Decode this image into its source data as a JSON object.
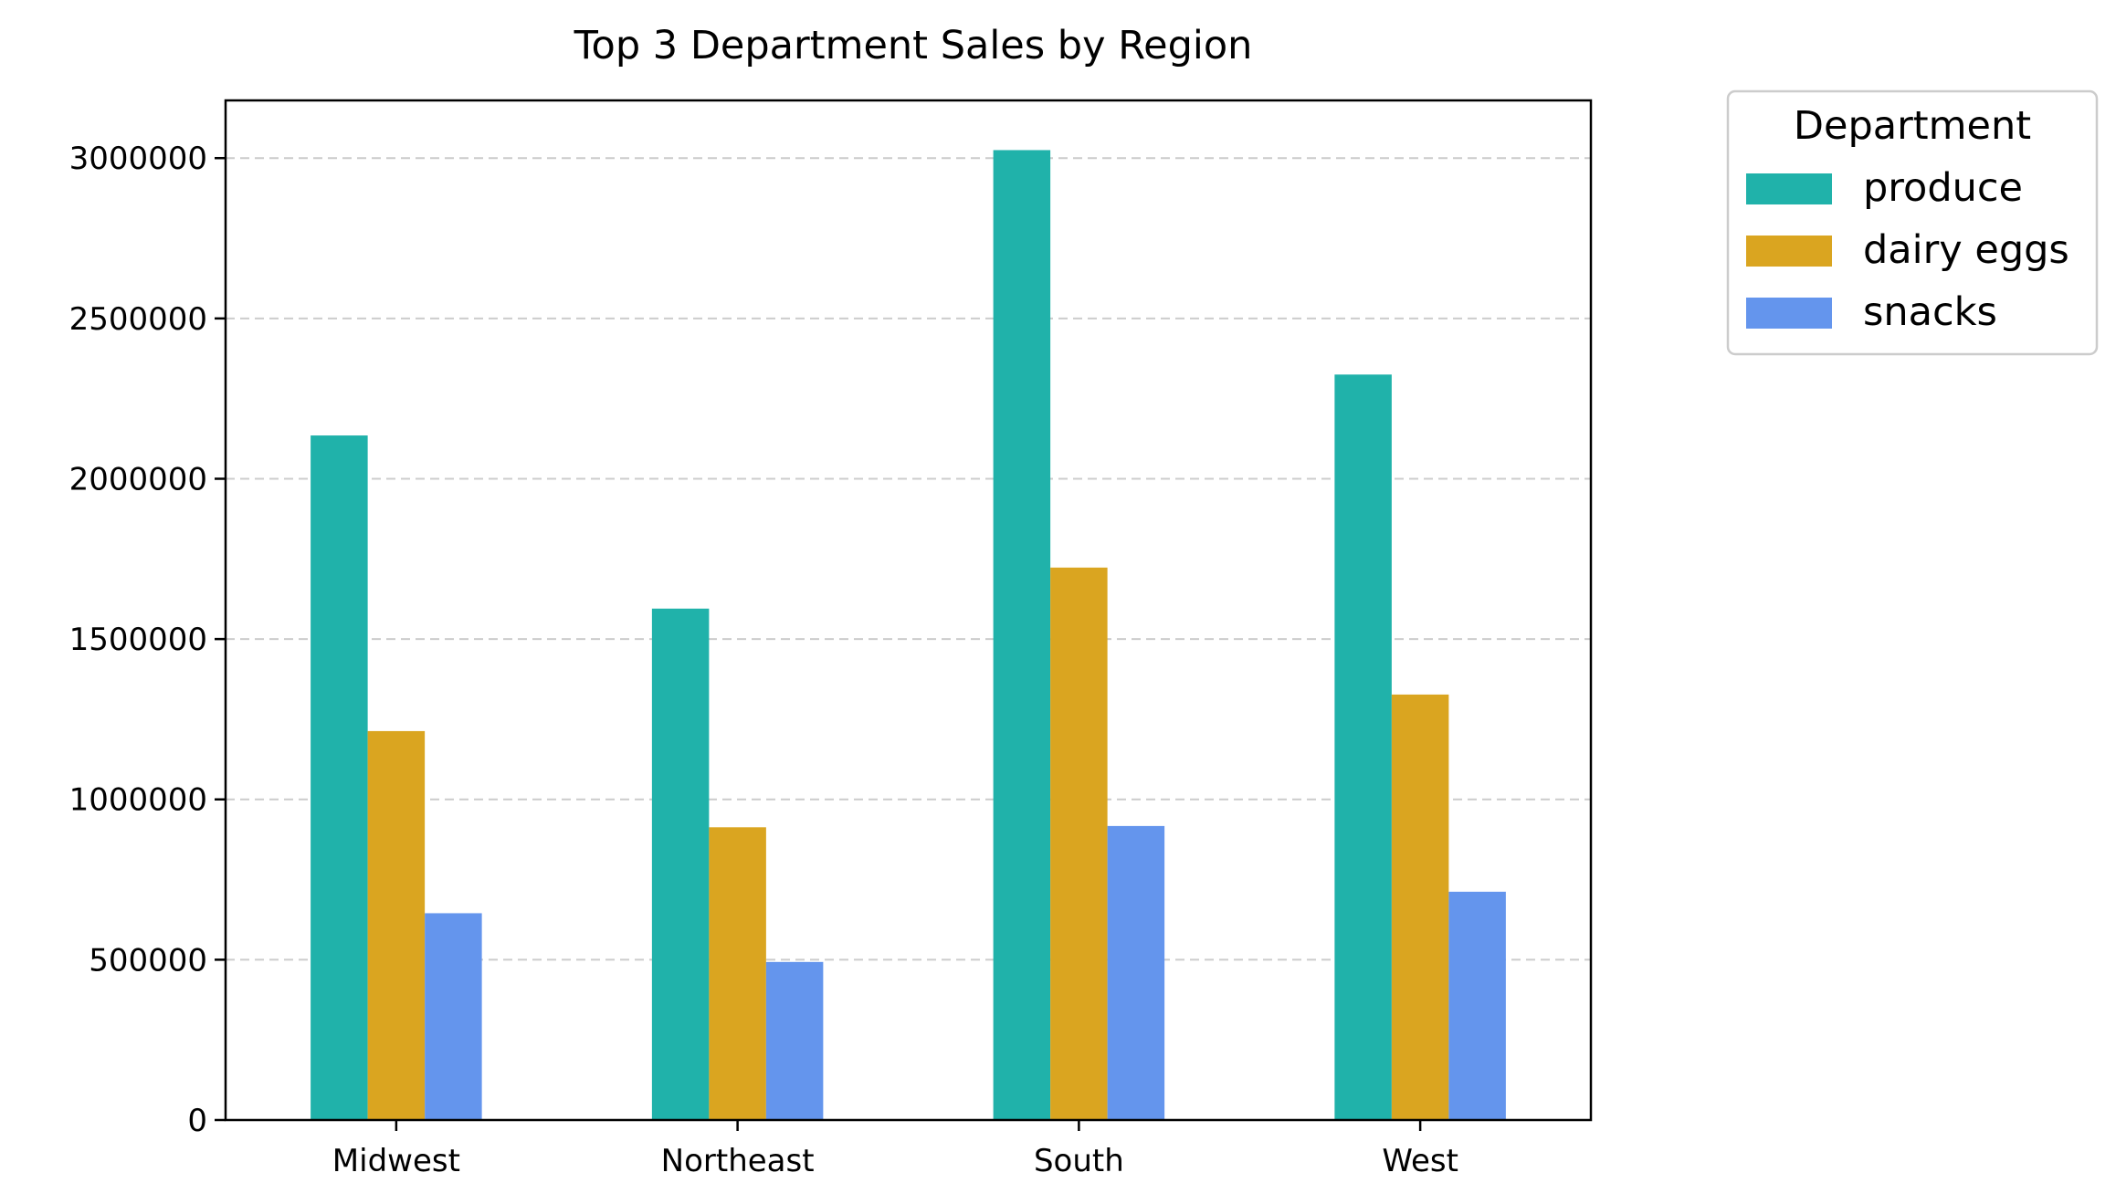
{
  "chart_data": {
    "type": "bar",
    "title": "Top 3 Department Sales by Region",
    "xlabel": "",
    "ylabel": "",
    "categories": [
      "Midwest",
      "Northeast",
      "South",
      "West"
    ],
    "series": [
      {
        "name": "produce",
        "color": "#20b2aa",
        "values": [
          2135000,
          1595000,
          3025000,
          2325000
        ]
      },
      {
        "name": "dairy eggs",
        "color": "#daa520",
        "values": [
          1213000,
          913000,
          1723000,
          1327000
        ]
      },
      {
        "name": "snacks",
        "color": "#6495ed",
        "values": [
          645000,
          493000,
          917000,
          712000
        ]
      }
    ],
    "ylim": [
      0,
      3180000
    ],
    "yticks": [
      0,
      500000,
      1000000,
      1500000,
      2000000,
      2500000,
      3000000
    ],
    "ytick_labels": [
      "0",
      "500000",
      "1000000",
      "1500000",
      "2000000",
      "2500000",
      "3000000"
    ],
    "grid": "y-dashed",
    "legend": {
      "title": "Department",
      "placement": "outside-top-right"
    }
  }
}
